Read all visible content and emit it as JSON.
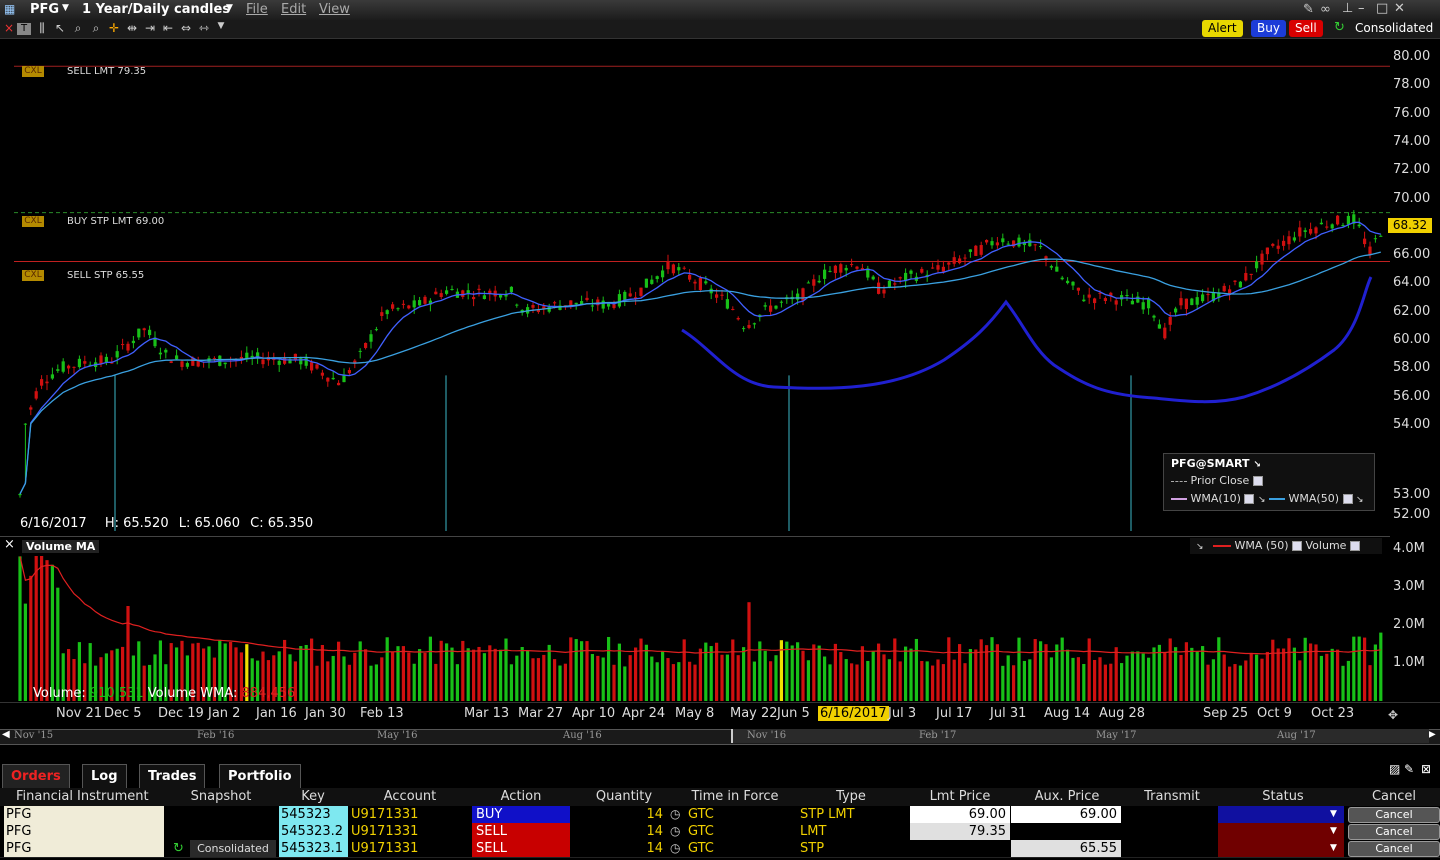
{
  "window": {
    "symbol": "PFG",
    "timeframe": "1 Year/Daily candles",
    "menus": [
      "File",
      "Edit",
      "View"
    ]
  },
  "actions": {
    "alert": "Alert",
    "buy": "Buy",
    "sell": "Sell",
    "consolidated": "Consolidated"
  },
  "price_axis": [
    "80.00",
    "78.00",
    "76.00",
    "74.00",
    "72.00",
    "70.00",
    "68.00",
    "66.00",
    "64.00",
    "62.00",
    "60.00",
    "58.00",
    "56.00",
    "54.00",
    "53.00",
    "52.00"
  ],
  "last_price": "68.32",
  "orders_on_chart": [
    {
      "cxl": "CXL",
      "label": "SELL LMT 79.35"
    },
    {
      "cxl": "CXL",
      "label": "BUY STP LMT 69.00"
    },
    {
      "cxl": "CXL",
      "label": "SELL STP 65.55"
    }
  ],
  "crosshair": {
    "date": "6/16/2017",
    "high": "H: 65.520",
    "low": "L: 65.060",
    "close": "C: 65.350"
  },
  "legend": {
    "title": "PFG@SMART",
    "prior_close": "Prior Close",
    "wma10": "WMA(10)",
    "wma50": "WMA(50)"
  },
  "volume_panel": {
    "title": "Volume MA",
    "legend_wma": "WMA (50)",
    "legend_volume": "Volume",
    "axis": [
      "4.0M",
      "3.0M",
      "2.0M",
      "1.0M"
    ],
    "volume_label": "Volume:",
    "volume_value": "910,531",
    "wma_label": "Volume WMA:",
    "wma_value": "884,456"
  },
  "date_axis": [
    "Nov 21",
    "Dec 5",
    "Dec 19",
    "Jan 2",
    "Jan 16",
    "Jan 30",
    "Feb 13",
    "Mar 13",
    "Mar 27",
    "Apr 10",
    "Apr 24",
    "May 8",
    "May 22",
    "Jun 5",
    "6/16/2017",
    "Jul 3",
    "Jul 17",
    "Jul 31",
    "Aug 14",
    "Aug 28",
    "Sep 25",
    "Oct 9",
    "Oct 23"
  ],
  "navigator": [
    "Nov '15",
    "Feb '16",
    "May '16",
    "Aug '16",
    "Nov '16",
    "Feb '17",
    "May '17",
    "Aug '17"
  ],
  "tabs": [
    "Orders",
    "Log",
    "Trades",
    "Portfolio"
  ],
  "orders": {
    "headers": [
      "Financial Instrument",
      "Snapshot",
      "Key",
      "Account",
      "Action",
      "Quantity",
      "Time in Force",
      "Type",
      "Lmt Price",
      "Aux. Price",
      "Transmit",
      "Status",
      "Cancel"
    ],
    "rows": [
      {
        "instrument": "PFG",
        "snapshot": "",
        "key": "545323",
        "account": "U9171331",
        "action": "BUY",
        "quantity": "14",
        "tif": "GTC",
        "type": "STP LMT",
        "lmt": "69.00",
        "aux": "69.00",
        "cancel": "Cancel",
        "color": "#1010c8"
      },
      {
        "instrument": "PFG",
        "snapshot": "",
        "key": "545323.2",
        "account": "U9171331",
        "action": "SELL",
        "quantity": "14",
        "tif": "GTC",
        "type": "LMT",
        "lmt": "79.35",
        "aux": "",
        "cancel": "Cancel",
        "color": "#c80000"
      },
      {
        "instrument": "PFG",
        "snapshot": "Consolidated",
        "key": "545323.1",
        "account": "U9171331",
        "action": "SELL",
        "quantity": "14",
        "tif": "GTC",
        "type": "STP",
        "lmt": "",
        "aux": "65.55",
        "cancel": "Cancel",
        "color": "#c80000"
      }
    ]
  },
  "colors": {
    "up": "#18c018",
    "down": "#d01010",
    "wma10": "#4060ff",
    "wma50": "#3aa0e0",
    "vol_wma": "#e02020",
    "annotation": "#2020d0"
  }
}
